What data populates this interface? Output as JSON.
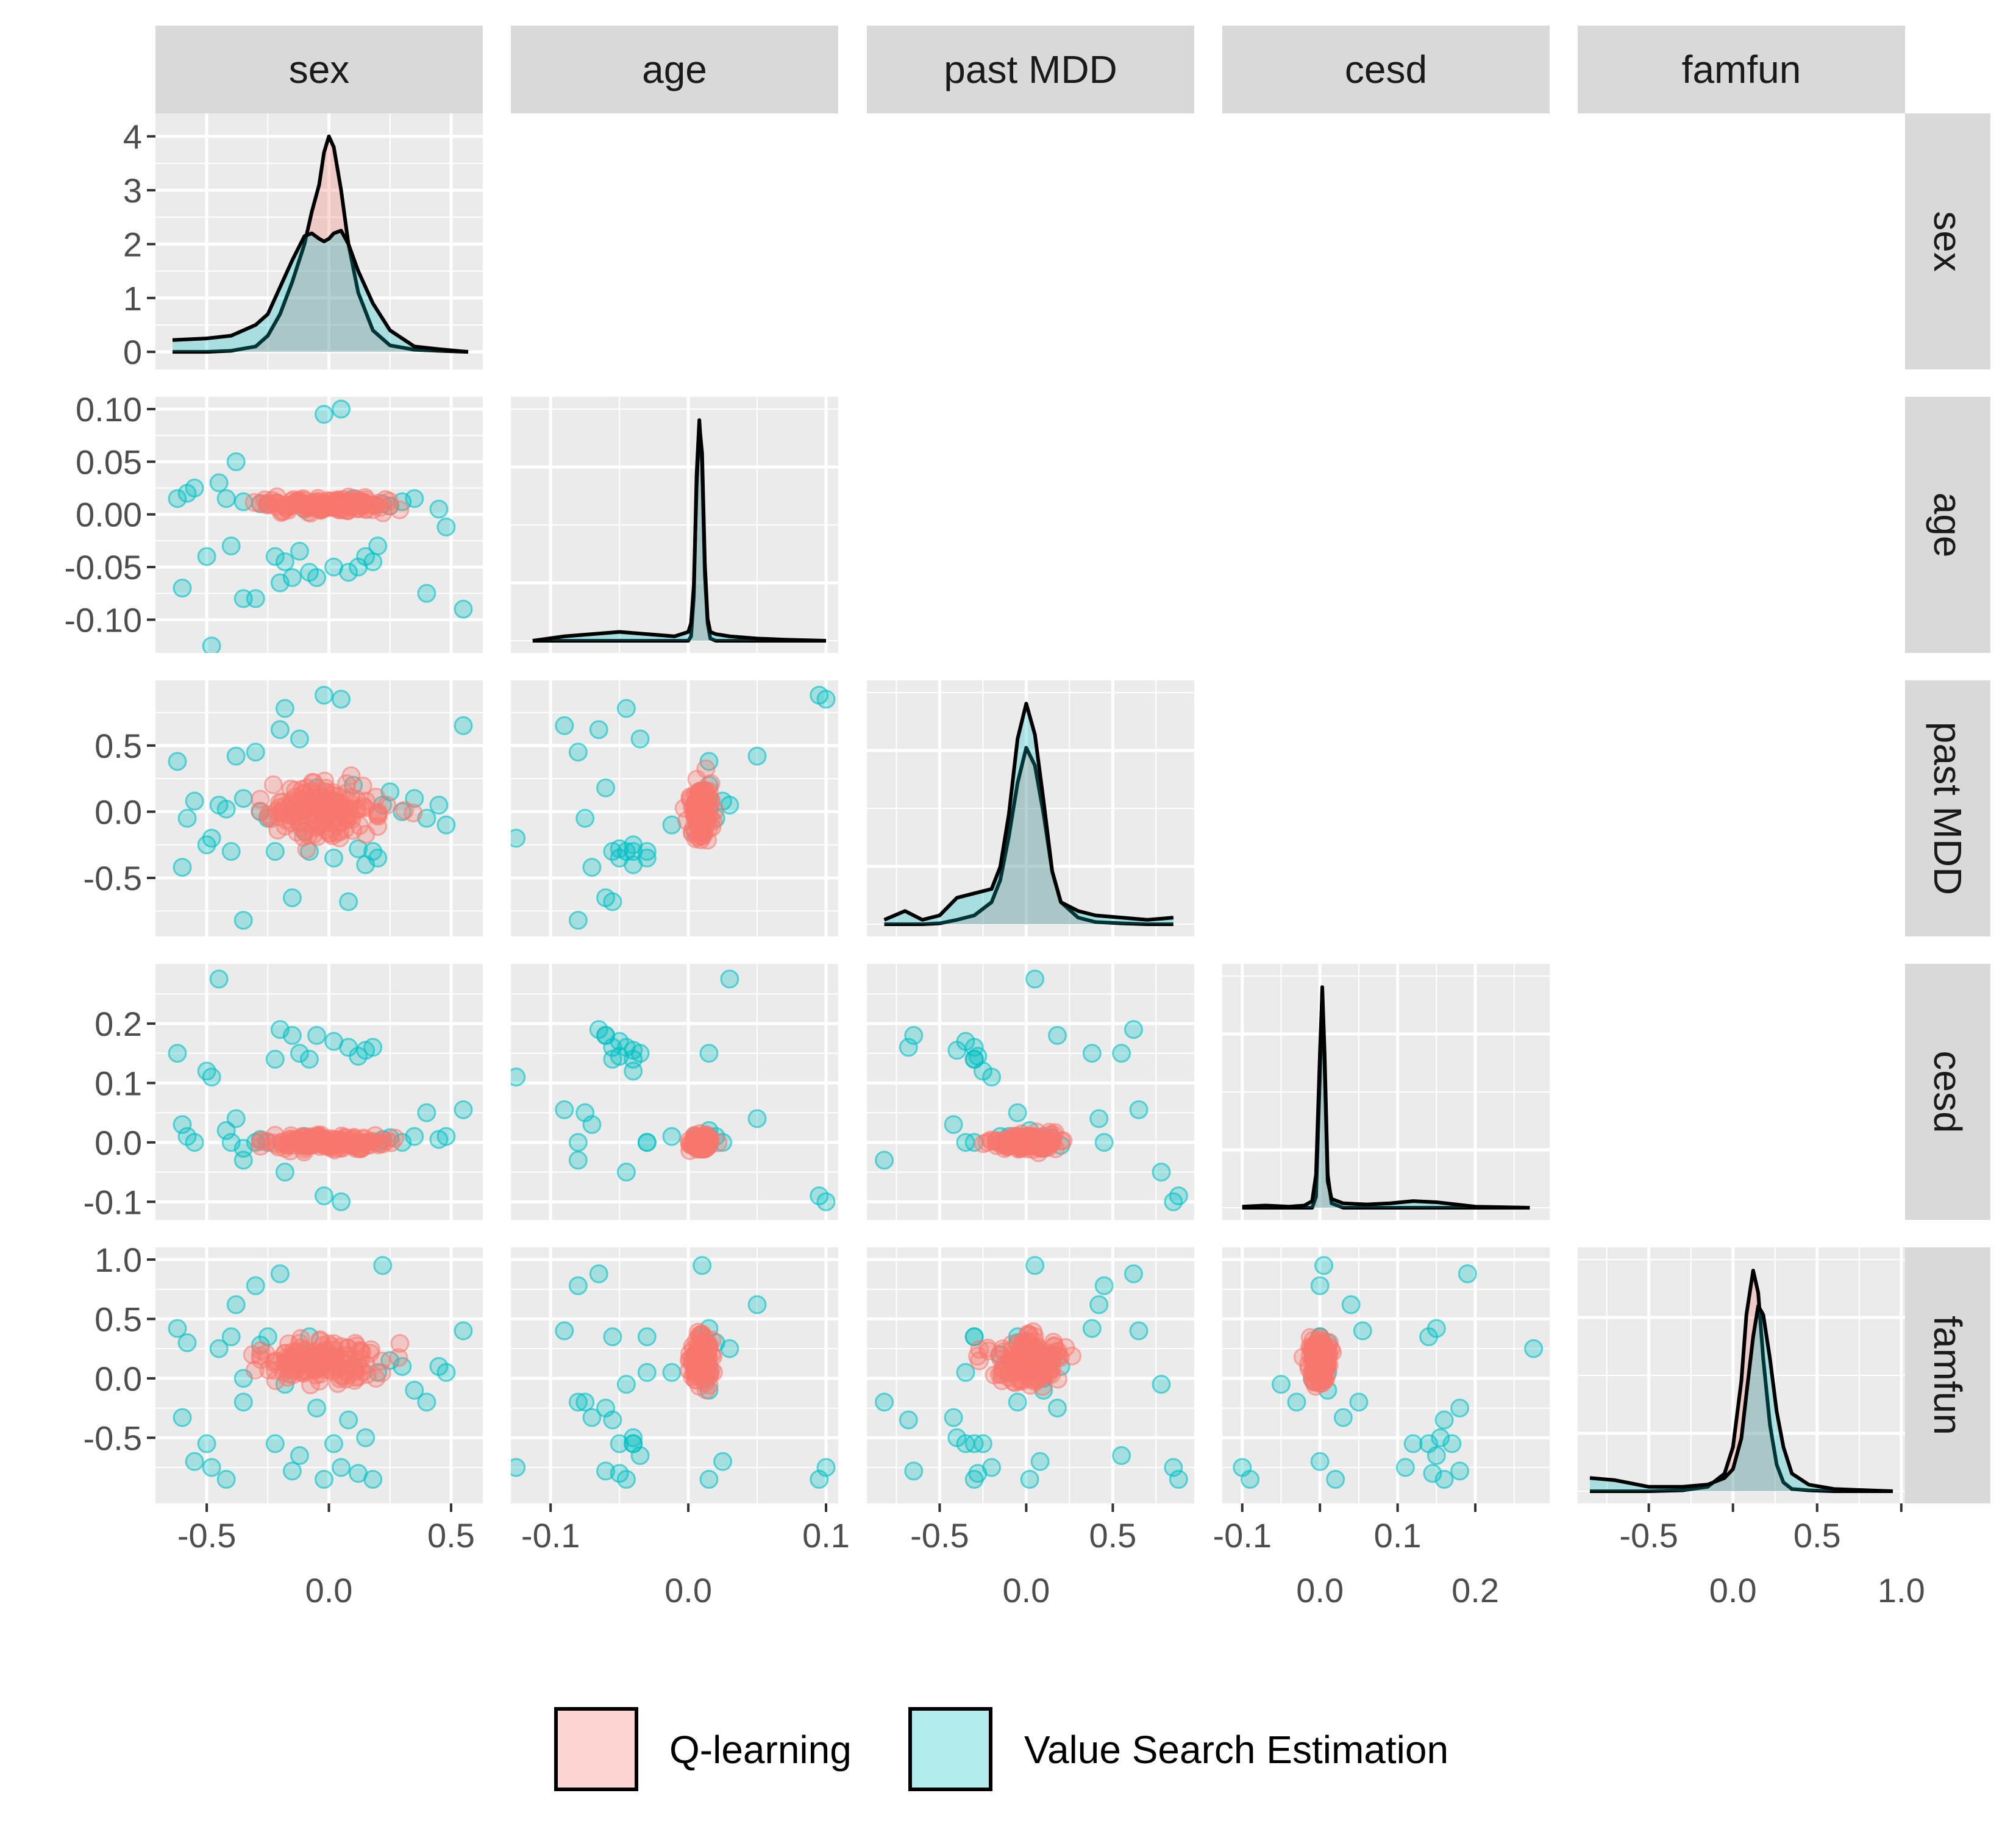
{
  "chart_data": {
    "type": "scatter",
    "layout": "pairs-matrix",
    "variables": [
      "sex",
      "age",
      "past MDD",
      "cesd",
      "famfun"
    ],
    "legend": {
      "position": "bottom",
      "entries": [
        {
          "label": "Q-learning",
          "color": "#f8766d"
        },
        {
          "label": "Value Search Estimation",
          "color": "#00bfc4"
        }
      ]
    },
    "diagonal_type": "density",
    "axes": {
      "sex": {
        "range": [
          -0.66,
          0.58
        ],
        "ticks_top": [
          -0.5,
          0.5
        ],
        "ticks_bottom": [
          0.0
        ],
        "ticks_top_labels": [
          "-0.5",
          "0.5"
        ],
        "ticks_bottom_labels": [
          "0.0"
        ]
      },
      "age": {
        "range": [
          -0.12,
          0.1
        ],
        "ticks_top": [
          -0.1,
          0.1
        ],
        "ticks_bottom": [
          0.0
        ],
        "ticks_top_labels": [
          "-0.1",
          "0.1"
        ],
        "ticks_bottom_labels": [
          "0.0"
        ]
      },
      "past MDD": {
        "range": [
          -0.85,
          0.9
        ],
        "ticks_top": [
          -0.5,
          0.5
        ],
        "ticks_bottom": [
          0.0
        ],
        "ticks_top_labels": [
          "-0.5",
          "0.5"
        ],
        "ticks_bottom_labels": [
          "0.0"
        ]
      },
      "cesd": {
        "range": [
          -0.11,
          0.28
        ],
        "ticks_top": [
          -0.1,
          0.1
        ],
        "ticks_bottom": [
          0.0,
          0.2
        ],
        "ticks_top_labels": [
          "-0.1",
          "0.1"
        ],
        "ticks_bottom_labels": [
          "0.0",
          "0.2"
        ]
      },
      "famfun": {
        "range": [
          -0.85,
          0.95
        ],
        "ticks_top": [
          -0.5,
          0.5
        ],
        "ticks_bottom": [
          0.0,
          1.0
        ],
        "ticks_top_labels": [
          "-0.5",
          "0.5"
        ],
        "ticks_bottom_labels": [
          "0.0",
          "1.0"
        ]
      }
    },
    "y_axes": {
      "sex": {
        "range": [
          -0.1,
          4.2
        ],
        "ticks": [
          0,
          1,
          2,
          3,
          4
        ],
        "tick_labels": [
          "0",
          "1",
          "2",
          "3",
          "4"
        ]
      },
      "age": {
        "range": [
          -0.12,
          0.1
        ],
        "ticks": [
          -0.1,
          -0.05,
          0.0,
          0.05,
          0.1
        ],
        "tick_labels": [
          "-0.10",
          "-0.05",
          "0.00",
          "0.05",
          "0.10"
        ]
      },
      "past MDD": {
        "range": [
          -0.85,
          0.9
        ],
        "ticks": [
          -0.5,
          0.0,
          0.5
        ],
        "tick_labels": [
          "-0.5",
          "0.0",
          "0.5"
        ]
      },
      "cesd": {
        "range": [
          -0.11,
          0.28
        ],
        "ticks": [
          -0.1,
          0.0,
          0.1,
          0.2
        ],
        "tick_labels": [
          "-0.1",
          "0.0",
          "0.1",
          "0.2"
        ]
      },
      "famfun": {
        "range": [
          -0.95,
          1.0
        ],
        "ticks": [
          -0.5,
          0.0,
          0.5,
          1.0
        ],
        "tick_labels": [
          "-0.5",
          "0.0",
          "0.5",
          "1.0"
        ]
      }
    },
    "densities": {
      "sex": {
        "x": [
          -0.64,
          -0.5,
          -0.4,
          -0.3,
          -0.25,
          -0.2,
          -0.15,
          -0.1,
          -0.07,
          -0.04,
          -0.02,
          0.0,
          0.02,
          0.05,
          0.08,
          0.12,
          0.18,
          0.25,
          0.35,
          0.45,
          0.57
        ],
        "q_learning": [
          0.0,
          0.0,
          0.02,
          0.1,
          0.3,
          0.7,
          1.3,
          2.0,
          2.6,
          3.1,
          3.7,
          4.0,
          3.8,
          3.0,
          2.0,
          1.1,
          0.4,
          0.12,
          0.04,
          0.02,
          0.0
        ],
        "value_search": [
          0.22,
          0.25,
          0.3,
          0.5,
          0.7,
          1.2,
          1.7,
          2.15,
          2.2,
          2.1,
          2.05,
          2.1,
          2.2,
          2.25,
          2.0,
          1.5,
          0.9,
          0.4,
          0.1,
          0.05,
          0.0
        ]
      },
      "age": {
        "x": [
          -0.113,
          -0.09,
          -0.07,
          -0.05,
          -0.03,
          -0.01,
          0.0,
          0.002,
          0.004,
          0.006,
          0.008,
          0.01,
          0.012,
          0.014,
          0.016,
          0.02,
          0.03,
          0.05,
          0.07,
          0.1
        ],
        "q_learning": [
          0.0,
          0.0,
          0.0,
          0.0,
          0.0,
          0.0,
          0.0,
          0.2,
          2.0,
          7.5,
          10.0,
          8.0,
          3.0,
          0.8,
          0.1,
          0.0,
          0.0,
          0.0,
          0.0,
          0.0
        ],
        "value_search": [
          0.0,
          0.2,
          0.3,
          0.4,
          0.3,
          0.2,
          0.4,
          0.8,
          2.5,
          7.0,
          9.8,
          8.5,
          3.5,
          1.0,
          0.4,
          0.3,
          0.2,
          0.1,
          0.05,
          0.0
        ]
      },
      "past MDD": {
        "x": [
          -0.82,
          -0.7,
          -0.6,
          -0.5,
          -0.4,
          -0.3,
          -0.2,
          -0.15,
          -0.1,
          -0.05,
          0.0,
          0.05,
          0.1,
          0.15,
          0.2,
          0.3,
          0.4,
          0.55,
          0.7,
          0.85
        ],
        "q_learning": [
          0.0,
          0.0,
          0.0,
          0.02,
          0.1,
          0.2,
          0.5,
          1.0,
          2.0,
          3.2,
          4.0,
          3.6,
          2.5,
          1.2,
          0.5,
          0.15,
          0.05,
          0.02,
          0.0,
          0.0
        ],
        "value_search": [
          0.1,
          0.3,
          0.1,
          0.2,
          0.6,
          0.7,
          0.8,
          1.3,
          2.5,
          4.2,
          5.0,
          4.3,
          2.8,
          1.2,
          0.5,
          0.3,
          0.2,
          0.15,
          0.1,
          0.15
        ]
      },
      "cesd": {
        "x": [
          -0.1,
          -0.07,
          -0.04,
          -0.02,
          -0.01,
          -0.005,
          0.0,
          0.003,
          0.006,
          0.01,
          0.015,
          0.03,
          0.06,
          0.09,
          0.12,
          0.15,
          0.2,
          0.27
        ],
        "q_learning": [
          0.0,
          0.0,
          0.0,
          0.0,
          0.0,
          0.5,
          6.0,
          10.0,
          7.0,
          1.5,
          0.2,
          0.0,
          0.0,
          0.0,
          0.0,
          0.0,
          0.0,
          0.0
        ],
        "value_search": [
          0.05,
          0.1,
          0.05,
          0.1,
          0.3,
          1.5,
          7.0,
          9.8,
          6.5,
          1.2,
          0.4,
          0.2,
          0.15,
          0.2,
          0.3,
          0.25,
          0.05,
          0.0
        ]
      },
      "famfun": {
        "x": [
          -0.85,
          -0.7,
          -0.5,
          -0.3,
          -0.15,
          -0.05,
          0.0,
          0.05,
          0.08,
          0.12,
          0.15,
          0.18,
          0.22,
          0.26,
          0.3,
          0.35,
          0.45,
          0.6,
          0.8,
          0.95
        ],
        "q_learning": [
          0.0,
          0.0,
          0.0,
          0.02,
          0.1,
          0.4,
          1.0,
          2.5,
          4.0,
          5.0,
          4.5,
          3.0,
          1.5,
          0.6,
          0.2,
          0.05,
          0.02,
          0.0,
          0.0,
          0.0
        ],
        "value_search": [
          0.3,
          0.25,
          0.1,
          0.1,
          0.15,
          0.3,
          0.5,
          1.2,
          2.2,
          3.5,
          4.2,
          4.0,
          3.0,
          1.8,
          1.0,
          0.4,
          0.15,
          0.05,
          0.02,
          0.0
        ]
      }
    },
    "scatter_series": {
      "q_learning_center": {
        "sex": -0.02,
        "age": 0.009,
        "past MDD": 0.0,
        "cesd": 0.0,
        "famfun": 0.15
      },
      "q_learning_spread": {
        "sex": 0.12,
        "age": 0.0035,
        "past MDD": 0.1,
        "cesd": 0.006,
        "famfun": 0.09
      },
      "value_search_outliers": [
        {
          "sex": -0.62,
          "age": 0.015,
          "past MDD": 0.38,
          "cesd": 0.15,
          "famfun": 0.42
        },
        {
          "sex": -0.58,
          "age": 0.02,
          "past MDD": -0.05,
          "cesd": 0.01,
          "famfun": 0.3
        },
        {
          "sex": -0.6,
          "age": -0.07,
          "past MDD": -0.42,
          "cesd": 0.03,
          "famfun": -0.33
        },
        {
          "sex": -0.55,
          "age": 0.025,
          "past MDD": 0.08,
          "cesd": 0.0,
          "famfun": -0.7
        },
        {
          "sex": -0.5,
          "age": -0.04,
          "past MDD": -0.25,
          "cesd": 0.12,
          "famfun": -0.55
        },
        {
          "sex": -0.48,
          "age": -0.125,
          "past MDD": -0.2,
          "cesd": 0.11,
          "famfun": -0.75
        },
        {
          "sex": -0.45,
          "age": 0.03,
          "past MDD": 0.05,
          "cesd": 0.275,
          "famfun": 0.25
        },
        {
          "sex": -0.42,
          "age": 0.015,
          "past MDD": 0.02,
          "cesd": 0.02,
          "famfun": -0.85
        },
        {
          "sex": -0.38,
          "age": 0.05,
          "past MDD": 0.42,
          "cesd": 0.04,
          "famfun": 0.62
        },
        {
          "sex": -0.35,
          "age": -0.08,
          "past MDD": -0.82,
          "cesd": -0.03,
          "famfun": -0.2
        },
        {
          "sex": -0.3,
          "age": -0.08,
          "past MDD": 0.45,
          "cesd": 0.0,
          "famfun": 0.78
        },
        {
          "sex": -0.28,
          "age": 0.01,
          "past MDD": 0.0,
          "cesd": 0.005,
          "famfun": 0.28
        },
        {
          "sex": -0.22,
          "age": -0.04,
          "past MDD": -0.3,
          "cesd": 0.14,
          "famfun": -0.55
        },
        {
          "sex": -0.2,
          "age": -0.065,
          "past MDD": 0.62,
          "cesd": 0.19,
          "famfun": 0.88
        },
        {
          "sex": -0.18,
          "age": -0.045,
          "past MDD": 0.78,
          "cesd": -0.05,
          "famfun": -0.05
        },
        {
          "sex": -0.15,
          "age": -0.06,
          "past MDD": -0.65,
          "cesd": 0.18,
          "famfun": -0.78
        },
        {
          "sex": -0.12,
          "age": -0.035,
          "past MDD": 0.55,
          "cesd": 0.15,
          "famfun": -0.65
        },
        {
          "sex": -0.08,
          "age": -0.055,
          "past MDD": -0.3,
          "cesd": 0.14,
          "famfun": 0.35
        },
        {
          "sex": -0.05,
          "age": -0.06,
          "past MDD": 0.18,
          "cesd": 0.18,
          "famfun": -0.25
        },
        {
          "sex": -0.02,
          "age": 0.095,
          "past MDD": 0.88,
          "cesd": -0.09,
          "famfun": -0.85
        },
        {
          "sex": 0.02,
          "age": -0.05,
          "past MDD": -0.35,
          "cesd": 0.17,
          "famfun": -0.55
        },
        {
          "sex": 0.05,
          "age": 0.1,
          "past MDD": 0.85,
          "cesd": -0.1,
          "famfun": -0.75
        },
        {
          "sex": 0.08,
          "age": -0.055,
          "past MDD": -0.68,
          "cesd": 0.16,
          "famfun": -0.35
        },
        {
          "sex": 0.12,
          "age": -0.05,
          "past MDD": -0.28,
          "cesd": 0.145,
          "famfun": -0.8
        },
        {
          "sex": 0.15,
          "age": -0.04,
          "past MDD": -0.4,
          "cesd": 0.155,
          "famfun": -0.5
        },
        {
          "sex": 0.18,
          "age": -0.045,
          "past MDD": -0.3,
          "cesd": 0.16,
          "famfun": -0.85
        },
        {
          "sex": 0.22,
          "age": 0.01,
          "past MDD": 0.05,
          "cesd": 0.005,
          "famfun": 0.95
        },
        {
          "sex": 0.3,
          "age": 0.012,
          "past MDD": 0.0,
          "cesd": 0.0,
          "famfun": 0.1
        },
        {
          "sex": 0.35,
          "age": 0.015,
          "past MDD": 0.1,
          "cesd": 0.01,
          "famfun": -0.1
        },
        {
          "sex": 0.4,
          "age": -0.075,
          "past MDD": -0.05,
          "cesd": 0.05,
          "famfun": -0.2
        },
        {
          "sex": 0.45,
          "age": 0.005,
          "past MDD": 0.05,
          "cesd": 0.005,
          "famfun": 0.1
        },
        {
          "sex": 0.48,
          "age": -0.012,
          "past MDD": -0.1,
          "cesd": 0.01,
          "famfun": 0.05
        },
        {
          "sex": 0.55,
          "age": -0.09,
          "past MDD": 0.65,
          "cesd": 0.055,
          "famfun": 0.4
        },
        {
          "sex": -0.1,
          "age": 0.005,
          "past MDD": -0.15,
          "cesd": 0.01,
          "famfun": 0.2
        },
        {
          "sex": 0.1,
          "age": 0.015,
          "past MDD": 0.2,
          "cesd": -0.005,
          "famfun": 0.1
        },
        {
          "sex": -0.25,
          "age": 0.01,
          "past MDD": -0.05,
          "cesd": 0.0,
          "famfun": 0.35
        },
        {
          "sex": 0.25,
          "age": 0.008,
          "past MDD": 0.15,
          "cesd": 0.008,
          "famfun": 0.15
        },
        {
          "sex": -0.35,
          "age": 0.012,
          "past MDD": 0.1,
          "cesd": -0.01,
          "famfun": 0.0
        },
        {
          "sex": 0.2,
          "age": -0.03,
          "past MDD": -0.35,
          "cesd": 0.0,
          "famfun": 0.05
        },
        {
          "sex": -0.4,
          "age": -0.03,
          "past MDD": -0.3,
          "cesd": 0.0,
          "famfun": 0.35
        }
      ]
    }
  }
}
